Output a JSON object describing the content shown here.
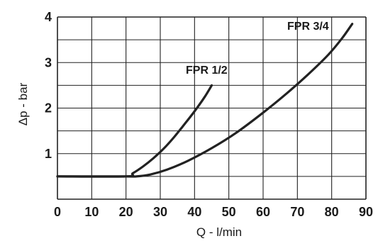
{
  "chart_data": {
    "type": "line",
    "xlabel": "Q - l/min",
    "ylabel": "Δp - bar",
    "xlim": [
      0,
      90
    ],
    "ylim": [
      0,
      4
    ],
    "x_ticks": [
      0,
      10,
      20,
      30,
      40,
      50,
      60,
      70,
      80,
      90
    ],
    "y_ticks": [
      1,
      2,
      3,
      4
    ],
    "grid": true,
    "series": [
      {
        "name": "FPR 1/2",
        "x": [
          0,
          20,
          22,
          25,
          28,
          31,
          34,
          37,
          40,
          43,
          45
        ],
        "y": [
          0.5,
          0.5,
          0.57,
          0.72,
          0.9,
          1.11,
          1.36,
          1.64,
          1.93,
          2.25,
          2.5
        ]
      },
      {
        "name": "FPR 3/4",
        "x": [
          0,
          20,
          23,
          27,
          32,
          38,
          45,
          52,
          60,
          67,
          73,
          79,
          83,
          86
        ],
        "y": [
          0.5,
          0.5,
          0.5,
          0.54,
          0.65,
          0.84,
          1.12,
          1.45,
          1.9,
          2.33,
          2.73,
          3.17,
          3.53,
          3.85
        ]
      }
    ],
    "colors": {
      "line": "#222222",
      "grid": "#222222",
      "text": "#1a1a1a"
    }
  }
}
